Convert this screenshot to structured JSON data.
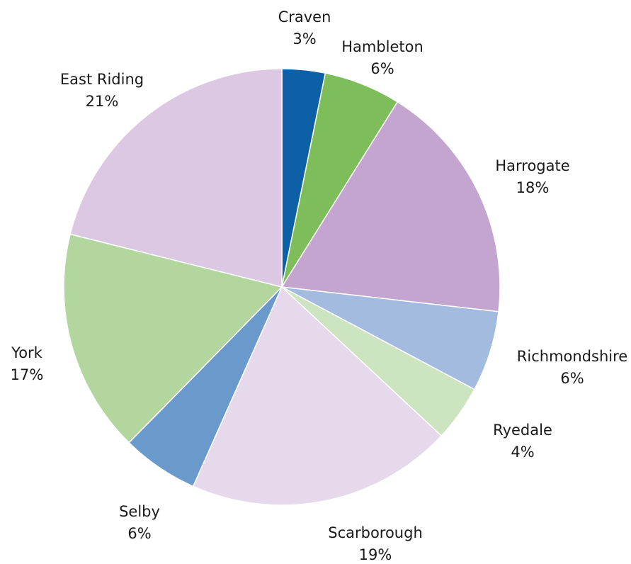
{
  "chart_data": {
    "type": "pie",
    "title": "",
    "slices": [
      {
        "label": "Craven",
        "value": 3,
        "value_label": "3%",
        "color": "#0d5fa6"
      },
      {
        "label": "Hambleton",
        "value": 6,
        "value_label": "6%",
        "color": "#7dbd5a"
      },
      {
        "label": "Harrogate",
        "value": 18,
        "value_label": "18%",
        "color": "#c4a5d0"
      },
      {
        "label": "Richmondshire",
        "value": 6,
        "value_label": "6%",
        "color": "#a2bbdf"
      },
      {
        "label": "Ryedale",
        "value": 4,
        "value_label": "4%",
        "color": "#cce4c0"
      },
      {
        "label": "Scarborough",
        "value": 19,
        "value_label": "19%",
        "color": "#e6d9ec"
      },
      {
        "label": "Selby",
        "value": 6,
        "value_label": "6%",
        "color": "#6a99cb"
      },
      {
        "label": "York",
        "value": 17,
        "value_label": "17%",
        "color": "#b3d69f"
      },
      {
        "label": "East Riding",
        "value": 21,
        "value_label": "21%",
        "color": "#dcc8e2"
      }
    ],
    "start": "12 o'clock",
    "direction": "clockwise",
    "legend": "none",
    "data_labels": "outside, category name and percentage"
  }
}
